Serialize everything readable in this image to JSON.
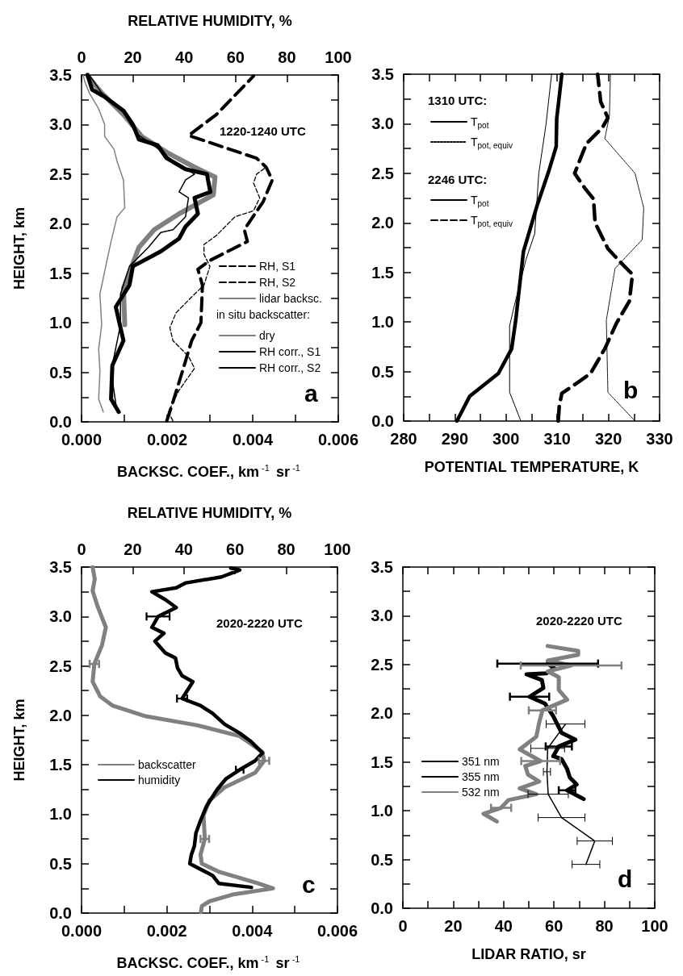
{
  "chart_data": [
    {
      "type": "line",
      "xlabel": "BACKSC. COEF., km$^{-1}$ sr$^{-1}$",
      "x2label": "RELATIVE HUMIDITY, %",
      "ylabel": "HEIGHT, km",
      "xlim": [
        0,
        0.006
      ],
      "xticks": [
        {
          "value": 0,
          "label": "0.000"
        },
        {
          "value": 0.001,
          "label": null
        },
        {
          "value": 0.002,
          "label": "0.002"
        },
        {
          "value": 0.003,
          "label": null
        },
        {
          "value": 0.004,
          "label": "0.004"
        },
        {
          "value": 0.005,
          "label": null
        },
        {
          "value": 0.006,
          "label": "0.006"
        }
      ],
      "x2lim": [
        0,
        100
      ],
      "x2ticks": [
        0,
        20,
        40,
        60,
        80,
        100
      ],
      "ylim": [
        0,
        3.5
      ],
      "yticks": [
        {
          "value": 0,
          "label": "0.0"
        },
        {
          "value": 0.25,
          "label": null
        },
        {
          "value": 0.5,
          "label": "0.5"
        },
        {
          "value": 0.75,
          "label": null
        },
        {
          "value": 1,
          "label": "1.0"
        },
        {
          "value": 1.25,
          "label": null
        },
        {
          "value": 1.5,
          "label": "1.5"
        },
        {
          "value": 1.75,
          "label": null
        },
        {
          "value": 2,
          "label": "2.0"
        },
        {
          "value": 2.25,
          "label": null
        },
        {
          "value": 2.5,
          "label": "2.5"
        },
        {
          "value": 2.75,
          "label": null
        },
        {
          "value": 3,
          "label": "3.0"
        },
        {
          "value": 3.25,
          "label": null
        },
        {
          "value": 3.5,
          "label": "3.5"
        }
      ],
      "grid": false,
      "legend": "bottom right",
      "marker": "none",
      "annotations": [
        "1220-1240 UTC",
        "in situ backscatter:",
        "a"
      ],
      "series": [
        {
          "name": "RH, S1",
          "color": "#000000",
          "axis": "x2",
          "line_style": "dashed",
          "x": [
            35.6,
            33.8,
            38,
            44,
            41.7,
            35.6,
            34.4,
            36.8,
            42.9,
            47.7,
            50,
            47.7,
            47.7,
            52.5,
            59.8,
            67,
            69.4,
            67,
            68.2,
            71.9
          ],
          "values": [
            0.01,
            0.1,
            0.32,
            0.54,
            0.66,
            0.82,
            0.95,
            1.1,
            1.26,
            1.38,
            1.57,
            1.69,
            1.79,
            1.88,
            2.07,
            2.13,
            2.26,
            2.41,
            2.5,
            2.57
          ]
        },
        {
          "name": "RH, S2",
          "color": "#000000",
          "axis": "x2",
          "line_style": "dashed",
          "x": [
            33.2,
            35.6,
            39.3,
            42.9,
            46.5,
            47.1,
            45.3,
            50.1,
            64.6,
            63.4,
            70.7,
            74.3,
            71.9,
            68.2,
            41.7,
            52.5,
            67
          ],
          "values": [
            0.01,
            0.2,
            0.51,
            0.82,
            1,
            1.38,
            1.54,
            1.63,
            1.82,
            1.94,
            2.22,
            2.44,
            2.57,
            2.66,
            2.89,
            3.1,
            3.49
          ]
        },
        {
          "name": "lidar backsc.",
          "color": "#808080",
          "line_style": "solid",
          "x": [
            0.00101,
            0.00098,
            0.00112,
            0.00134,
            0.0017,
            0.00228,
            0.00308,
            0.00312,
            0.00264,
            0.00199,
            0.00141,
            0.00098,
            0.00047,
            0.00018,
            0.00014
          ],
          "values": [
            0.98,
            1.35,
            1.51,
            1.76,
            1.94,
            2.1,
            2.29,
            2.47,
            2.57,
            2.72,
            2.88,
            3.1,
            3.32,
            3.47,
            3.5
          ]
        },
        {
          "name": "dry",
          "color": "#808080",
          "line_style": "solid",
          "x": [
            0.00051,
            0.0004,
            0.00043,
            0.0004,
            0.00047,
            0.00043,
            0.00058,
            0.00069,
            0.00083,
            0.00101,
            0.00098,
            0.00083,
            0.00076,
            0.00054,
            0.00054,
            0.0004,
            0.00018,
            7e-05,
            4e-05
          ],
          "values": [
            0.1,
            0.23,
            0.51,
            0.73,
            0.98,
            1.29,
            1.6,
            1.82,
            2.07,
            2.16,
            2.44,
            2.63,
            2.75,
            2.88,
            3,
            3.16,
            3.32,
            3.44,
            3.5
          ]
        },
        {
          "name": "RH corr., S1",
          "color": "#000000",
          "line_style": "solid",
          "x": [
            0.00083,
            0.00069,
            0.00091,
            0.00091,
            0.00112,
            0.00156,
            0.00185,
            0.00214,
            0.00243,
            0.0025,
            0.00228,
            0.00243,
            0.00264,
            0.00214,
            0.0017,
            0.00127,
            0.00098,
            0.00047,
            0.00018
          ],
          "values": [
            0.1,
            0.51,
            0.98,
            1.29,
            1.57,
            1.76,
            1.91,
            1.94,
            2.07,
            2.26,
            2.32,
            2.44,
            2.5,
            2.63,
            2.79,
            2.91,
            3.13,
            3.32,
            3.5
          ]
        },
        {
          "name": "RH corr., S2",
          "color": "#000000",
          "line_style": "solid",
          "x": [
            0.00087,
            0.00069,
            0.00072,
            0.00098,
            0.0008,
            0.00112,
            0.0012,
            0.00185,
            0.00228,
            0.00243,
            0.00272,
            0.00264,
            0.00301,
            0.00293,
            0.00243,
            0.00199,
            0.00178,
            0.00134,
            0.0012,
            0.00098,
            0.00054,
            0.00025,
            0.00014
          ],
          "values": [
            0.1,
            0.23,
            0.57,
            0.82,
            1.16,
            1.38,
            1.57,
            1.72,
            1.85,
            1.97,
            2.1,
            2.26,
            2.32,
            2.5,
            2.55,
            2.66,
            2.79,
            2.85,
            3,
            3.14,
            3.28,
            3.35,
            3.5
          ]
        }
      ]
    },
    {
      "type": "line",
      "xlabel": "POTENTIAL TEMPERATURE, K",
      "xlim": [
        280,
        330
      ],
      "xticks": [
        280,
        {
          "value": 285,
          "label": null
        },
        290,
        {
          "value": 295,
          "label": null
        },
        300,
        {
          "value": 305,
          "label": null
        },
        310,
        {
          "value": 315,
          "label": null
        },
        320,
        {
          "value": 325,
          "label": null
        },
        330
      ],
      "ylim": [
        0,
        3.5
      ],
      "yticks": [
        {
          "value": 0,
          "label": "0.0"
        },
        {
          "value": 0.25,
          "label": null
        },
        {
          "value": 0.5,
          "label": "0.5"
        },
        {
          "value": 0.75,
          "label": null
        },
        {
          "value": 1,
          "label": "1.0"
        },
        {
          "value": 1.25,
          "label": null
        },
        {
          "value": 1.5,
          "label": "1.5"
        },
        {
          "value": 1.75,
          "label": null
        },
        {
          "value": 2,
          "label": "2.0"
        },
        {
          "value": 2.25,
          "label": null
        },
        {
          "value": 2.5,
          "label": "2.5"
        },
        {
          "value": 2.75,
          "label": null
        },
        {
          "value": 3,
          "label": "3.0"
        },
        {
          "value": 3.25,
          "label": null
        },
        {
          "value": 3.5,
          "label": "3.5"
        }
      ],
      "grid": false,
      "legend": "top left",
      "marker": "none",
      "annotations": [
        "1310 UTC:",
        "2246 UTC:",
        "b"
      ],
      "series": [
        {
          "name": "T$_{pot}$",
          "color": "#000000",
          "line_style": "solid",
          "x": [
            302.9,
            300.7,
            300.7,
            301.6,
            303.9,
            305.6,
            306.4,
            307.8,
            308.9
          ],
          "values": [
            0,
            0.29,
            0.96,
            1.16,
            1.63,
            1.89,
            2.5,
            2.99,
            3.5
          ]
        },
        {
          "name": "T$_{pot, equiv}$",
          "color": "#000000",
          "line_style": "dotted",
          "x": [
            325.2,
            319.9,
            319.6,
            321.3,
            326.6,
            326.9,
            325.2,
            319.3,
            320.2,
            320.4
          ],
          "values": [
            0,
            0.29,
            1.02,
            1.54,
            1.83,
            2.15,
            2.5,
            2.85,
            3.08,
            3.5
          ]
        },
        {
          "name": "T$_{pot}$",
          "color": "#000000",
          "line_style": "solid",
          "x": [
            290.4,
            292.9,
            298.5,
            301.1,
            301.9,
            303.4,
            306.1,
            308.4,
            309.8,
            309.9,
            310.9
          ],
          "values": [
            0,
            0.25,
            0.48,
            0.73,
            1.02,
            1.71,
            2.18,
            2.53,
            2.77,
            3.05,
            3.5
          ]
        },
        {
          "name": "T$_{pot, equiv}$",
          "color": "#000000",
          "line_style": "dashed",
          "x": [
            310.2,
            310.4,
            310.9,
            314.6,
            316.5,
            319.3,
            321.6,
            324.1,
            324.7,
            322.4,
            319.9,
            317.4,
            317.1,
            315.4,
            313.4,
            315.7,
            318.8,
            319.9,
            318.5,
            317.9
          ],
          "values": [
            0,
            0.15,
            0.28,
            0.41,
            0.48,
            0.73,
            0.99,
            1.21,
            1.48,
            1.6,
            1.74,
            2,
            2.24,
            2.35,
            2.5,
            2.8,
            2.96,
            3.06,
            3.22,
            3.5
          ]
        }
      ]
    },
    {
      "type": "line",
      "xlabel": "BACKSC. COEF., km$^{-1}$ sr$^{-1}$",
      "x2label": "RELATIVE HUMIDITY, %",
      "ylabel": "HEIGHT, km",
      "xlim": [
        0,
        0.006
      ],
      "xticks": [
        {
          "value": 0,
          "label": "0.000"
        },
        {
          "value": 0.001,
          "label": null
        },
        {
          "value": 0.002,
          "label": "0.002"
        },
        {
          "value": 0.003,
          "label": null
        },
        {
          "value": 0.004,
          "label": "0.004"
        },
        {
          "value": 0.005,
          "label": null
        },
        {
          "value": 0.006,
          "label": "0.006"
        }
      ],
      "x2lim": [
        0,
        100
      ],
      "x2ticks": [
        0,
        20,
        40,
        60,
        80,
        100
      ],
      "ylim": [
        0,
        3.5
      ],
      "yticks": [
        {
          "value": 0,
          "label": "0.0"
        },
        {
          "value": 0.25,
          "label": null
        },
        {
          "value": 0.5,
          "label": "0.5"
        },
        {
          "value": 0.75,
          "label": null
        },
        {
          "value": 1,
          "label": "1.0"
        },
        {
          "value": 1.25,
          "label": null
        },
        {
          "value": 1.5,
          "label": "1.5"
        },
        {
          "value": 1.75,
          "label": null
        },
        {
          "value": 2,
          "label": "2.0"
        },
        {
          "value": 2.25,
          "label": null
        },
        {
          "value": 2.5,
          "label": "2.5"
        },
        {
          "value": 2.75,
          "label": null
        },
        {
          "value": 3,
          "label": "3.0"
        },
        {
          "value": 3.25,
          "label": null
        },
        {
          "value": 3.5,
          "label": "3.5"
        }
      ],
      "grid": false,
      "legend": "middle left",
      "marker": "none",
      "annotations": [
        "2020-2220 UTC",
        "c"
      ],
      "series": [
        {
          "name": "backscatter",
          "color": "#808080",
          "line_style": "solid",
          "x": [
            0.0028,
            0.00282,
            0.003,
            0.00357,
            0.00449,
            0.00414,
            0.00321,
            0.00282,
            0.00279,
            0.00289,
            0.00286,
            0.003,
            0.00335,
            0.00407,
            0.00428,
            0.00424,
            0.00371,
            0.00271,
            0.00151,
            0.00072,
            0.00044,
            0.00026,
            0.0003,
            0.00048,
            0.00057,
            0.00037,
            0.00026,
            0.00031,
            0.00026
          ],
          "values": [
            0.01,
            0.07,
            0.12,
            0.19,
            0.25,
            0.3,
            0.42,
            0.5,
            0.59,
            0.75,
            0.99,
            1.14,
            1.27,
            1.42,
            1.54,
            1.63,
            1.79,
            1.9,
            1.99,
            2.1,
            2.19,
            2.34,
            2.52,
            2.71,
            2.89,
            3.11,
            3.26,
            3.38,
            3.5
          ],
          "xerrors": [
            null,
            null,
            null,
            null,
            null,
            null,
            null,
            null,
            null,
            0.0001,
            null,
            null,
            null,
            null,
            0.00012,
            null,
            null,
            null,
            null,
            null,
            null,
            null,
            0.00011,
            null,
            null,
            null,
            null,
            null,
            null
          ]
        },
        {
          "name": "humidity",
          "color": "#000000",
          "axis": "x2",
          "line_style": "solid",
          "x": [
            66.4,
            53.6,
            51.2,
            42.3,
            42.9,
            44.1,
            44.7,
            46.4,
            48.8,
            53,
            56.5,
            61.8,
            67.8,
            70.7,
            66,
            61.8,
            55.9,
            51.2,
            46.4,
            39.3,
            42.3,
            43.5,
            39.3,
            37.5,
            36.7,
            32.8,
            28.7,
            32.2,
            27.5,
            29.9,
            37,
            32.8,
            27.5,
            37,
            40.8,
            54.7,
            61.8,
            58.3
          ],
          "values": [
            0.26,
            0.3,
            0.38,
            0.5,
            0.59,
            0.68,
            0.81,
            0.93,
            1.08,
            1.25,
            1.36,
            1.45,
            1.54,
            1.62,
            1.74,
            1.82,
            1.91,
            2.02,
            2.1,
            2.17,
            2.29,
            2.34,
            2.4,
            2.48,
            2.58,
            2.63,
            2.75,
            2.83,
            2.89,
            3,
            3.09,
            3.17,
            3.25,
            3.29,
            3.34,
            3.4,
            3.47,
            3.49
          ],
          "xerrors": [
            null,
            null,
            null,
            null,
            null,
            null,
            null,
            null,
            null,
            null,
            null,
            1.5,
            null,
            null,
            null,
            null,
            null,
            null,
            null,
            2,
            null,
            null,
            null,
            null,
            null,
            null,
            null,
            null,
            null,
            4.5,
            null,
            null,
            null,
            null,
            null,
            null,
            null,
            null
          ]
        }
      ]
    },
    {
      "type": "line",
      "xlabel": "LIDAR RATIO, sr",
      "xlim": [
        0,
        100
      ],
      "xticks": [
        0,
        {
          "value": 10,
          "label": null
        },
        20,
        {
          "value": 30,
          "label": null
        },
        40,
        {
          "value": 50,
          "label": null
        },
        60,
        {
          "value": 70,
          "label": null
        },
        80,
        {
          "value": 90,
          "label": null
        },
        100
      ],
      "ylim": [
        0,
        3.5
      ],
      "yticks": [
        {
          "value": 0,
          "label": "0.0"
        },
        {
          "value": 0.25,
          "label": null
        },
        {
          "value": 0.5,
          "label": "0.5"
        },
        {
          "value": 0.75,
          "label": null
        },
        {
          "value": 1,
          "label": "1.0"
        },
        {
          "value": 1.25,
          "label": null
        },
        {
          "value": 1.5,
          "label": "1.5"
        },
        {
          "value": 1.75,
          "label": null
        },
        {
          "value": 2,
          "label": "2.0"
        },
        {
          "value": 2.25,
          "label": null
        },
        {
          "value": 2.5,
          "label": "2.5"
        },
        {
          "value": 2.75,
          "label": null
        },
        {
          "value": 3,
          "label": "3.0"
        },
        {
          "value": 3.25,
          "label": null
        },
        {
          "value": 3.5,
          "label": "3.5"
        }
      ],
      "grid": false,
      "legend": "middle left",
      "marker": "none",
      "annotations": [
        "2020-2220 UTC",
        "d"
      ],
      "series": [
        {
          "name": "351 nm",
          "color": "#000000",
          "line_style": "solid",
          "x": [
            72.7,
            76.2,
            63,
            57.7,
            57.2,
            57.5,
            64.6
          ],
          "values": [
            0.45,
            0.69,
            0.93,
            1.17,
            1.4,
            1.64,
            1.89
          ],
          "xerrors": [
            5.5,
            7,
            9.3,
            8,
            1.4,
            6.7,
            7.7
          ]
        },
        {
          "name": "355 nm",
          "color": "#000000",
          "line_style": "solid",
          "x": [
            71.8,
            65.2,
            69,
            66.3,
            65.2,
            63,
            59.7,
            61.9,
            68.5,
            63,
            59.7,
            56.4,
            50.3,
            55.8,
            55.2,
            49.1,
            56.9,
            60.2,
            57.5
          ],
          "values": [
            1.12,
            1.21,
            1.27,
            1.34,
            1.43,
            1.53,
            1.56,
            1.66,
            1.73,
            1.8,
            1.97,
            2.1,
            2.17,
            2.26,
            2.34,
            2.4,
            2.41,
            2.46,
            2.51
          ],
          "xerrors": [
            null,
            3.3,
            null,
            null,
            null,
            null,
            null,
            5.2,
            null,
            null,
            null,
            null,
            7.8,
            null,
            null,
            null,
            null,
            null,
            20
          ]
        },
        {
          "name": "532 nm",
          "color": "#808080",
          "line_style": "solid",
          "x": [
            37.3,
            32,
            39,
            41.9,
            53,
            46.4,
            54.1,
            49.7,
            48.6,
            54.7,
            46.4,
            53,
            54.1,
            55.4,
            65.2,
            61.9,
            61.9,
            57.5,
            66.8,
            57.5,
            69.6,
            69.6,
            57.5
          ],
          "values": [
            0.89,
            0.97,
            1.03,
            1.11,
            1.17,
            1.23,
            1.3,
            1.37,
            1.46,
            1.51,
            1.63,
            1.76,
            1.9,
            2.03,
            2.14,
            2.24,
            2.37,
            2.43,
            2.49,
            2.54,
            2.6,
            2.64,
            2.69
          ],
          "xerrors": [
            null,
            null,
            4,
            null,
            null,
            null,
            null,
            null,
            null,
            7.7,
            null,
            null,
            null,
            5.4,
            null,
            null,
            null,
            null,
            20,
            null,
            null,
            null,
            null
          ]
        }
      ]
    }
  ]
}
